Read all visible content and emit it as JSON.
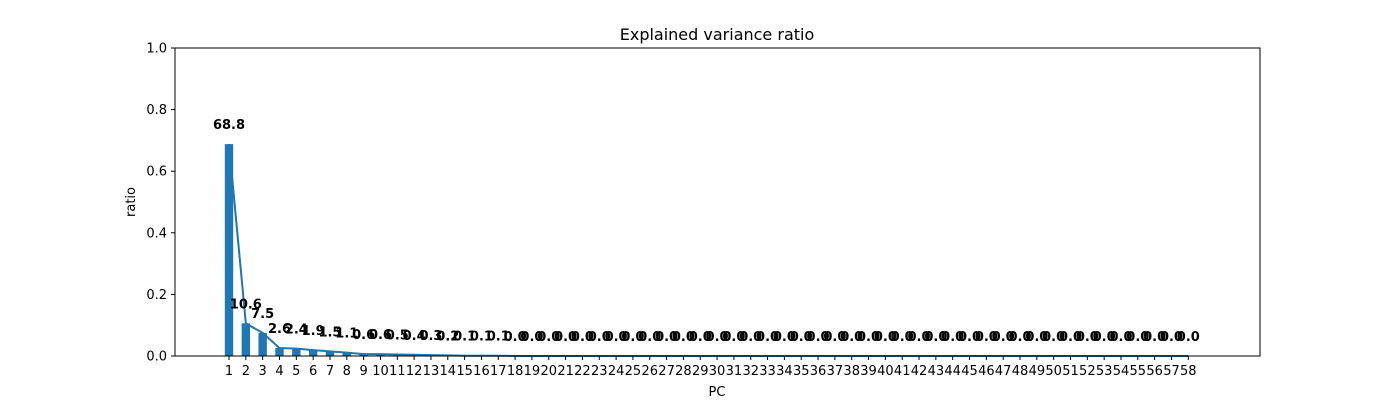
{
  "chart_data": {
    "type": "bar",
    "title": "Explained variance ratio",
    "xlabel": "PC",
    "ylabel": "ratio",
    "ylim": [
      0,
      1.0
    ],
    "yticks": [
      "0.0",
      "0.2",
      "0.4",
      "0.6",
      "0.8",
      "1.0"
    ],
    "grid": false,
    "bar_color": "#1f77b4",
    "line_color": "#1f77b4",
    "categories": [
      "1",
      "2",
      "3",
      "4",
      "5",
      "6",
      "7",
      "8",
      "9",
      "10",
      "11",
      "12",
      "13",
      "14",
      "15",
      "16",
      "17",
      "18",
      "19",
      "20",
      "21",
      "22",
      "23",
      "24",
      "25",
      "26",
      "27",
      "28",
      "29",
      "30",
      "31",
      "32",
      "33",
      "34",
      "35",
      "36",
      "37",
      "38",
      "39",
      "40",
      "41",
      "42",
      "43",
      "44",
      "45",
      "46",
      "47",
      "48",
      "49",
      "50",
      "51",
      "52",
      "53",
      "54",
      "55",
      "56",
      "57",
      "58"
    ],
    "values": [
      0.688,
      0.106,
      0.075,
      0.026,
      0.024,
      0.019,
      0.015,
      0.011,
      0.006,
      0.006,
      0.005,
      0.004,
      0.003,
      0.002,
      0.001,
      0.001,
      0.001,
      0,
      0,
      0,
      0,
      0,
      0,
      0,
      0,
      0,
      0,
      0,
      0,
      0,
      0,
      0,
      0,
      0,
      0,
      0,
      0,
      0,
      0,
      0,
      0,
      0,
      0,
      0,
      0,
      0,
      0,
      0,
      0,
      0,
      0,
      0,
      0,
      0,
      0,
      0,
      0,
      0
    ],
    "labels": [
      "68.8",
      "10.6",
      "7.5",
      "2.6",
      "2.4",
      "1.9",
      "1.5",
      "1.1",
      "0.6",
      "0.6",
      "0.5",
      "0.4",
      "0.3",
      "0.2",
      "0.1",
      "0.1",
      "0.1",
      "0.0",
      "0.0",
      "0.0",
      "0.0",
      "0.0",
      "0.0",
      "0.0",
      "0.0",
      "0.0",
      "0.0",
      "0.0",
      "0.0",
      "0.0",
      "0.0",
      "0.0",
      "0.0",
      "0.0",
      "0.0",
      "0.0",
      "0.0",
      "0.0",
      "0.0",
      "0.0",
      "0.0",
      "0.0",
      "0.0",
      "0.0",
      "0.0",
      "0.0",
      "0.0",
      "0.0",
      "0.0",
      "0.0",
      "0.0",
      "0.0",
      "0.0",
      "0.0",
      "0.0",
      "0.0",
      "0.0",
      "0.0"
    ]
  }
}
